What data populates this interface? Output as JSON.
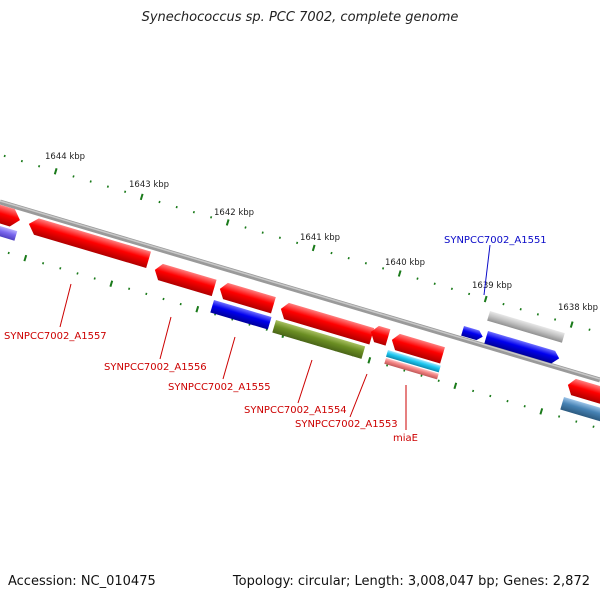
{
  "title": "Synechococcus sp. PCC 7002, complete genome",
  "accession": "Accession: NC_010475",
  "topology": "Topology: circular; Length: 3,008,047 bp; Genes: 2,872",
  "ruler_labels": [
    "1644 kbp",
    "1643 kbp",
    "1642 kbp",
    "1641 kbp",
    "1640 kbp",
    "1639 kbp",
    "1638 kbp"
  ],
  "gene_labels": [
    {
      "text": "SYNPCC7002_A1551",
      "color": "#0a0ac8"
    },
    {
      "text": "SYNPCC7002_A1557",
      "color": "#cc0000"
    },
    {
      "text": "SYNPCC7002_A1556",
      "color": "#cc0000"
    },
    {
      "text": "SYNPCC7002_A1555",
      "color": "#cc0000"
    },
    {
      "text": "SYNPCC7002_A1554",
      "color": "#cc0000"
    },
    {
      "text": "SYNPCC7002_A1553",
      "color": "#cc0000"
    },
    {
      "text": "miaE",
      "color": "#cc0000"
    }
  ],
  "colors": {
    "backbone": "#777777",
    "red_gene": "#ff0000",
    "blue_gene": "#0000ee",
    "green_gene": "#6b8e23",
    "gray_gene": "#bdbdbd",
    "cyan_gene": "#1ec8f0",
    "pink_gene": "#f08080",
    "steel_gene": "#4682b4",
    "lavender_gene": "#7b68ee",
    "tick": "#1a7a1a"
  }
}
